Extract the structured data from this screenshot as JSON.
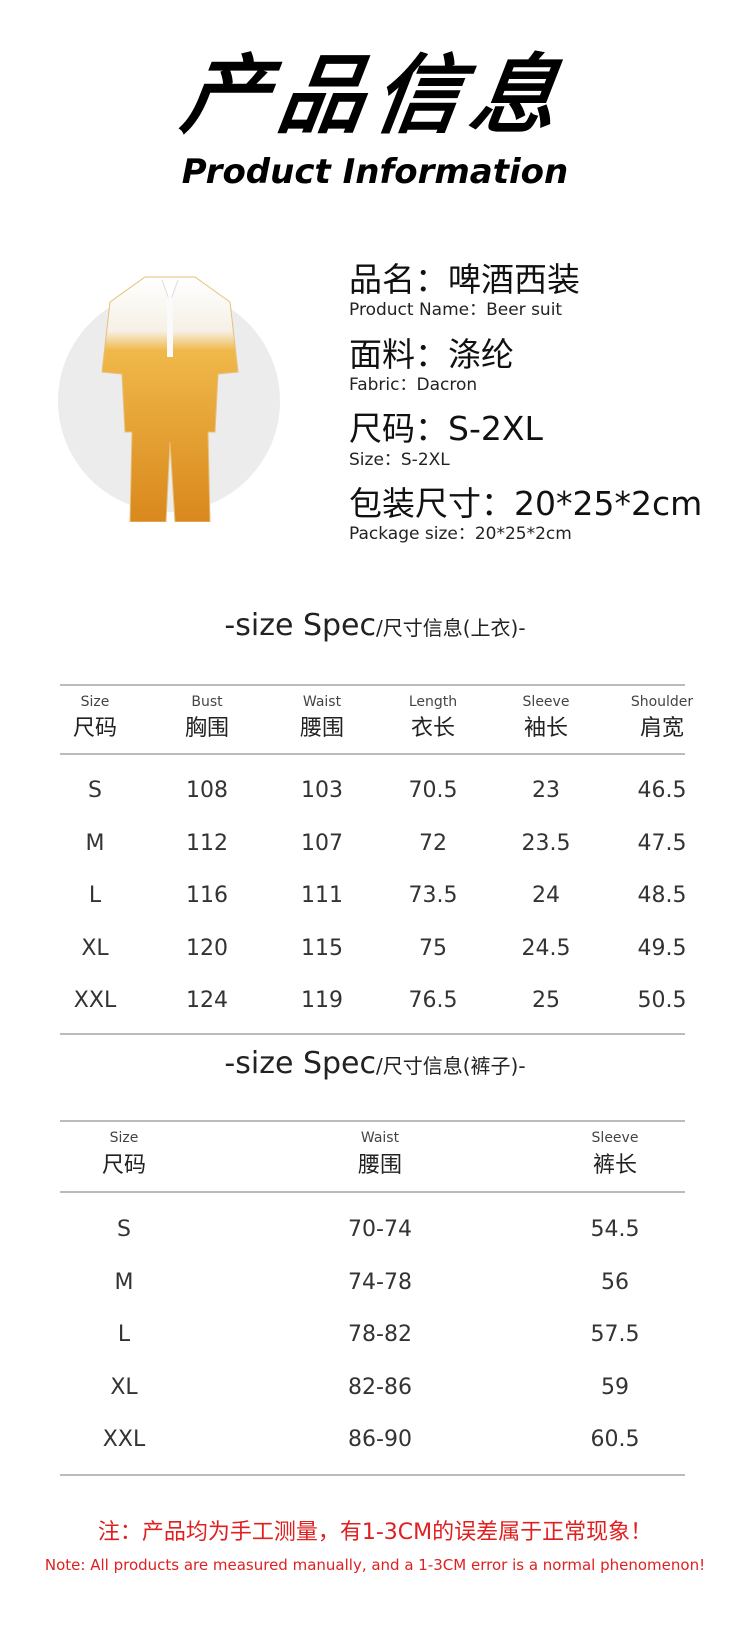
{
  "header": {
    "title_cn": "产品信息",
    "title_en": "Product Information"
  },
  "product": {
    "name_cn": "品名：啤酒西装",
    "name_en": "Product Name：Beer suit",
    "fabric_cn": "面料：涤纶",
    "fabric_en": "Fabric：Dacron",
    "size_cn": "尺码：S-2XL",
    "size_en": "Size：S-2XL",
    "package_cn": "包装尺寸：20*25*2cm",
    "package_en": "Package size：20*25*2cm"
  },
  "top_table": {
    "title": "-size Spec",
    "title_cn": "/尺寸信息(上衣)-",
    "headers": [
      {
        "en": "Size",
        "cn": "尺码"
      },
      {
        "en": "Bust",
        "cn": "胸围"
      },
      {
        "en": "Waist",
        "cn": "腰围"
      },
      {
        "en": "Length",
        "cn": "衣长"
      },
      {
        "en": "Sleeve",
        "cn": "袖长"
      },
      {
        "en": "Shoulder",
        "cn": "肩宽"
      }
    ],
    "rows": [
      [
        "S",
        "108",
        "103",
        "70.5",
        "23",
        "46.5"
      ],
      [
        "M",
        "112",
        "107",
        "72",
        "23.5",
        "47.5"
      ],
      [
        "L",
        "116",
        "111",
        "73.5",
        "24",
        "48.5"
      ],
      [
        "XL",
        "120",
        "115",
        "75",
        "24.5",
        "49.5"
      ],
      [
        "XXL",
        "124",
        "119",
        "76.5",
        "25",
        "50.5"
      ]
    ]
  },
  "pants_table": {
    "title": "-size Spec",
    "title_cn": "/尺寸信息(裤子)-",
    "headers": [
      {
        "en": "Size",
        "cn": "尺码"
      },
      {
        "en": "Waist",
        "cn": "腰围"
      },
      {
        "en": "Sleeve",
        "cn": "裤长"
      }
    ],
    "rows": [
      [
        "S",
        "70-74",
        "54.5"
      ],
      [
        "M",
        "74-78",
        "56"
      ],
      [
        "L",
        "78-82",
        "57.5"
      ],
      [
        "XL",
        "82-86",
        "59"
      ],
      [
        "XXL",
        "86-90",
        "60.5"
      ]
    ]
  },
  "note": {
    "cn": "注：产品均为手工测量，有1-3CM的误差属于正常现象！",
    "en": "Note: All products are measured manually, and a 1-3CM error is a normal phenomenon!",
    "color": "#e02020"
  }
}
